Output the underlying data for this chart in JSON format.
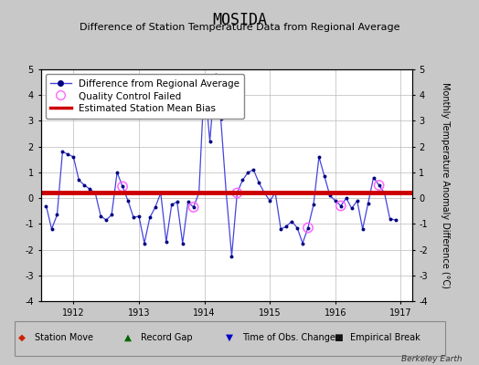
{
  "title": "MOSIDA",
  "subtitle": "Difference of Station Temperature Data from Regional Average",
  "ylabel": "Monthly Temperature Anomaly Difference (°C)",
  "xlabel_years": [
    1912,
    1913,
    1914,
    1915,
    1916,
    1917
  ],
  "bias_value": 0.2,
  "fig_bg_color": "#c8c8c8",
  "plot_bg_color": "#ffffff",
  "ylim": [
    -4,
    5
  ],
  "xlim_start": 1911.5,
  "xlim_end": 1917.17,
  "yticks": [
    -4,
    -3,
    -2,
    -1,
    0,
    1,
    2,
    3,
    4,
    5
  ],
  "time_series": [
    1911.583,
    1911.667,
    1911.75,
    1911.833,
    1911.917,
    1912.0,
    1912.083,
    1912.167,
    1912.25,
    1912.333,
    1912.417,
    1912.5,
    1912.583,
    1912.667,
    1912.75,
    1912.833,
    1912.917,
    1913.0,
    1913.083,
    1913.167,
    1913.25,
    1913.333,
    1913.417,
    1913.5,
    1913.583,
    1913.667,
    1913.75,
    1913.833,
    1913.917,
    1914.0,
    1914.083,
    1914.167,
    1914.25,
    1914.333,
    1914.417,
    1914.5,
    1914.583,
    1914.667,
    1914.75,
    1914.833,
    1914.917,
    1915.0,
    1915.083,
    1915.167,
    1915.25,
    1915.333,
    1915.417,
    1915.5,
    1915.583,
    1915.667,
    1915.75,
    1915.833,
    1915.917,
    1916.0,
    1916.083,
    1916.167,
    1916.25,
    1916.333,
    1916.417,
    1916.5,
    1916.583,
    1916.667,
    1916.75,
    1916.833,
    1916.917
  ],
  "values": [
    -0.3,
    -1.2,
    -0.65,
    1.8,
    1.7,
    1.6,
    0.7,
    0.5,
    0.35,
    0.2,
    -0.7,
    -0.85,
    -0.65,
    1.0,
    0.45,
    -0.1,
    -0.75,
    -0.7,
    -1.75,
    -0.75,
    -0.35,
    0.2,
    -1.7,
    -0.25,
    -0.15,
    -1.75,
    -0.15,
    -0.35,
    0.2,
    4.6,
    2.2,
    4.8,
    3.1,
    0.2,
    -2.25,
    0.2,
    0.7,
    1.0,
    1.1,
    0.6,
    0.2,
    -0.1,
    0.2,
    -1.2,
    -1.1,
    -0.9,
    -1.15,
    -1.75,
    -1.15,
    -0.25,
    1.6,
    0.85,
    0.1,
    -0.1,
    -0.3,
    0.0,
    -0.4,
    -0.1,
    -1.2,
    -0.2,
    0.8,
    0.5,
    0.2,
    -0.8,
    -0.85
  ],
  "qc_failed_indices": [
    14,
    27,
    35,
    48,
    54,
    61
  ],
  "line_color": "#4444dd",
  "dot_color": "#000080",
  "bias_line_color": "#cc0000",
  "qc_color": "#ff66ff",
  "legend_fontsize": 7.5,
  "title_fontsize": 12,
  "subtitle_fontsize": 8,
  "axis_fontsize": 7,
  "ylabel_fontsize": 7
}
